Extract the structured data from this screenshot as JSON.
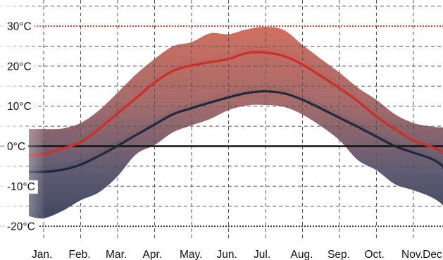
{
  "chart_data": {
    "type": "line",
    "title": "",
    "xlabel": "",
    "ylabel": "",
    "categories": [
      "Jan.",
      "Feb.",
      "Mar.",
      "Apr.",
      "May.",
      "Jun.",
      "Jul.",
      "Aug.",
      "Sep.",
      "Oct.",
      "Nov.",
      "Dec"
    ],
    "y_ticks": [
      {
        "value": 30,
        "label": "30°C"
      },
      {
        "value": 20,
        "label": "20°C"
      },
      {
        "value": 10,
        "label": "10°C"
      },
      {
        "value": 0,
        "label": "0°C"
      },
      {
        "value": -10,
        "label": "-10°C"
      },
      {
        "value": -20,
        "label": "-20°C"
      }
    ],
    "ylim": [
      -23,
      34
    ],
    "grid": true,
    "reference_lines": [
      {
        "value": 30,
        "color": "#c8402c",
        "style": "dotted"
      },
      {
        "value": 0,
        "color": "#111111",
        "style": "solid"
      },
      {
        "value": -20,
        "color": "#2a3650",
        "style": "dotted"
      }
    ],
    "x": [
      -0.4,
      0.0,
      0.5,
      1.0,
      1.5,
      2.0,
      2.5,
      3.0,
      3.5,
      4.0,
      4.5,
      5.0,
      5.5,
      6.0,
      6.5,
      7.0,
      7.5,
      8.0,
      8.5,
      9.0,
      9.5,
      10.0,
      10.5,
      11.0,
      11.4
    ],
    "series": [
      {
        "role": "mean-max",
        "color": "#c8302a",
        "values": [
          -2.3,
          -2.0,
          -0.6,
          1.0,
          4.3,
          8.2,
          12.0,
          15.9,
          18.8,
          20.2,
          21.0,
          21.8,
          23.3,
          23.4,
          22.5,
          20.4,
          17.5,
          14.5,
          11.2,
          7.4,
          4.2,
          1.4,
          -0.2,
          -1.5,
          -2.1
        ]
      },
      {
        "role": "mean-min",
        "color": "#1e2a3c",
        "values": [
          -6.4,
          -6.4,
          -5.9,
          -4.6,
          -2.4,
          0.1,
          2.8,
          5.4,
          8.0,
          9.5,
          10.9,
          12.2,
          13.3,
          13.7,
          13.2,
          11.6,
          9.4,
          7.1,
          4.8,
          2.4,
          0.0,
          -1.6,
          -3.2,
          -5.0,
          -5.6
        ]
      }
    ],
    "bands": [
      {
        "role": "record-range",
        "upper": [
          4.3,
          4.3,
          4.4,
          5.8,
          9.0,
          13.4,
          18.0,
          21.8,
          25.0,
          26.0,
          28.2,
          28.0,
          29.2,
          29.8,
          29.0,
          25.3,
          21.8,
          18.4,
          14.6,
          11.6,
          8.0,
          5.8,
          4.9,
          4.7,
          4.6
        ],
        "lower": [
          -17.5,
          -18.0,
          -16.2,
          -13.5,
          -11.5,
          -7.5,
          -2.0,
          0.3,
          3.5,
          5.2,
          6.8,
          9.0,
          10.2,
          10.3,
          9.8,
          7.9,
          5.0,
          1.5,
          -3.5,
          -6.0,
          -9.5,
          -11.0,
          -12.8,
          -14.8,
          -16.4
        ]
      }
    ],
    "colors": {
      "warm": "#cf5a4a",
      "cold": "#3e4660",
      "grid": "#555555"
    }
  }
}
